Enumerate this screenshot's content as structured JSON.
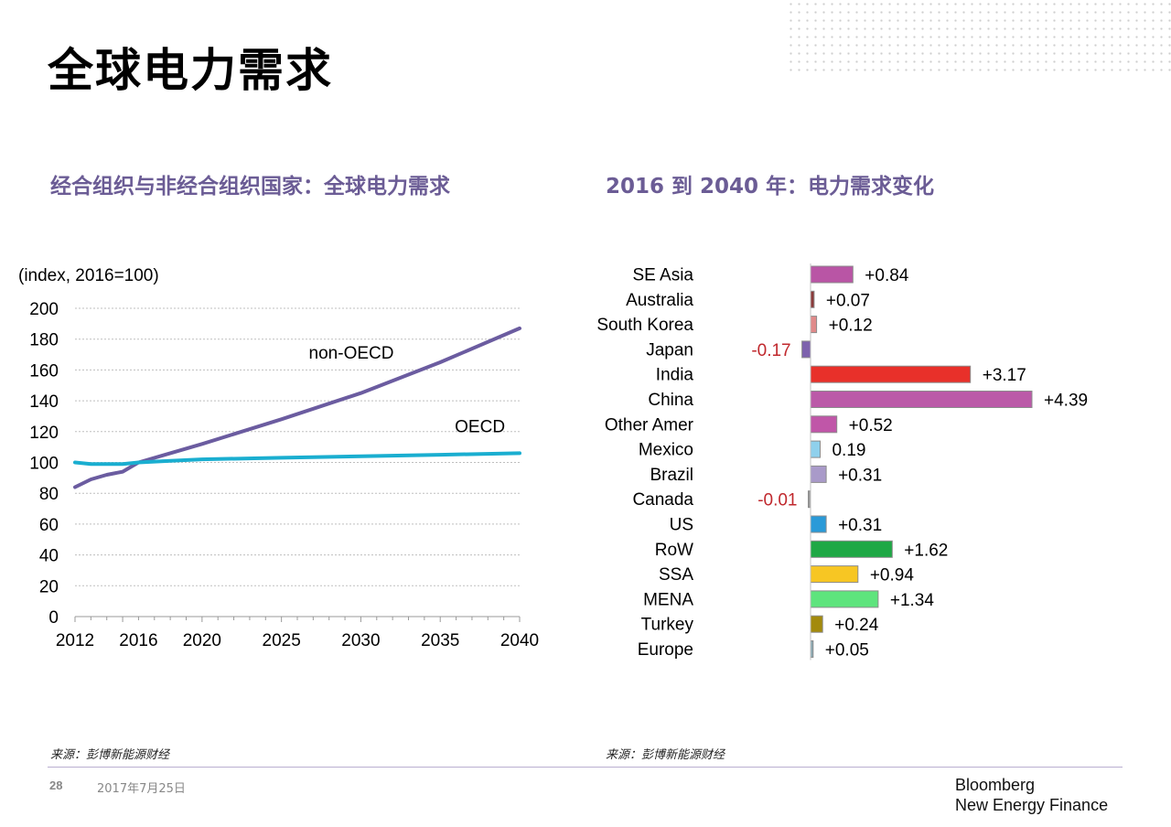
{
  "page": {
    "title": "全球电力需求",
    "left_subtitle": "经合组织与非经合组织国家：全球电力需求",
    "right_subtitle": "2016 到 2040 年：电力需求变化",
    "left_source": "来源：彭博新能源财经",
    "right_source": "来源：彭博新能源财经",
    "page_number": "28",
    "date": "2017年7月25日",
    "brand_line1": "Bloomberg",
    "brand_line2": "New Energy Finance"
  },
  "chart_data": [
    {
      "type": "line",
      "unit_label": "(index, 2016=100)",
      "x_ticks": [
        "2012",
        "2016",
        "2020",
        "2025",
        "2030",
        "2035",
        "2040"
      ],
      "y_ticks": [
        "0",
        "20",
        "40",
        "60",
        "80",
        "100",
        "120",
        "140",
        "160",
        "180",
        "200"
      ],
      "xlim": [
        2012,
        2040
      ],
      "ylim": [
        0,
        200
      ],
      "grid": true,
      "series": [
        {
          "name": "non-OECD",
          "color": "#6b5ca0",
          "x": [
            2012,
            2013,
            2014,
            2015,
            2016,
            2018,
            2020,
            2025,
            2030,
            2035,
            2040
          ],
          "y": [
            84,
            89,
            92,
            94,
            100,
            106,
            112,
            128,
            145,
            165,
            187
          ]
        },
        {
          "name": "OECD",
          "color": "#1aaed0",
          "x": [
            2012,
            2013,
            2014,
            2015,
            2016,
            2018,
            2020,
            2025,
            2030,
            2035,
            2040
          ],
          "y": [
            100,
            99,
            99,
            99,
            100,
            101,
            102,
            103,
            104,
            105,
            106
          ]
        }
      ]
    },
    {
      "type": "bar",
      "orientation": "horizontal",
      "categories": [
        "SE Asia",
        "Australia",
        "South Korea",
        "Japan",
        "India",
        "China",
        "Other Amer",
        "Mexico",
        "Brazil",
        "Canada",
        "US",
        "RoW",
        "SSA",
        "MENA",
        "Turkey",
        "Europe"
      ],
      "values": [
        0.84,
        0.07,
        0.12,
        -0.17,
        3.17,
        4.39,
        0.52,
        0.19,
        0.31,
        -0.01,
        0.31,
        1.62,
        0.94,
        1.34,
        0.24,
        0.05
      ],
      "labels": [
        "+0.84",
        "+0.07",
        "+0.12",
        "-0.17",
        "+3.17",
        "+4.39",
        "+0.52",
        "0.19",
        "+0.31",
        "-0.01",
        "+0.31",
        "+1.62",
        "+0.94",
        "+1.34",
        "+0.24",
        "+0.05"
      ],
      "colors": [
        "#b955a5",
        "#8b3a3a",
        "#e08a8a",
        "#7d62ad",
        "#e8302a",
        "#bb5aa8",
        "#c056a8",
        "#8fd0ec",
        "#a99ac9",
        "#9a9a9a",
        "#2a9ad8",
        "#1fa845",
        "#f7c623",
        "#5ee47d",
        "#a38a0c",
        "#8aaab4"
      ],
      "negative_label_color": "#c0282d",
      "positive_label_color": "#000000"
    }
  ]
}
